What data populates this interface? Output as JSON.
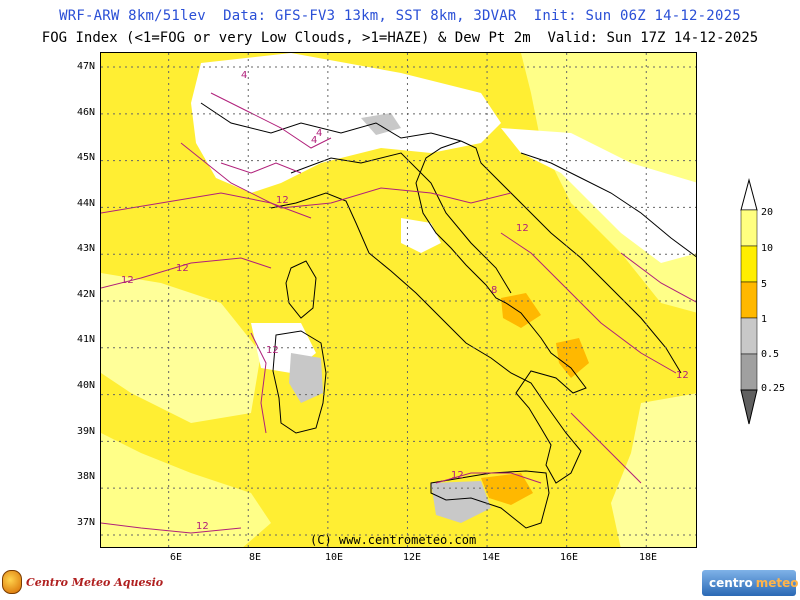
{
  "header": {
    "line1": "WRF-ARW 8km/51lev  Data: GFS-FV3 13km, SST 8km, 3DVAR  Init: Sun 06Z 14-12-2025",
    "line2": "FOG Index (<1=FOG or very Low Clouds, >1=HAZE) & Dew Pt 2m  Valid: Sun 17Z 14-12-2025"
  },
  "map": {
    "lat_labels": [
      "47N",
      "46N",
      "45N",
      "44N",
      "43N",
      "42N",
      "41N",
      "40N",
      "39N",
      "38N",
      "37N"
    ],
    "lon_labels": [
      "6E",
      "8E",
      "10E",
      "12E",
      "14E",
      "16E",
      "18E"
    ],
    "lat_range": [
      36.7,
      47.3
    ],
    "lon_range": [
      4.3,
      19.3
    ],
    "copyright": "(C) www.centrometeo.com",
    "contour_labels": [
      "4",
      "4",
      "12",
      "12",
      "12",
      "12",
      "12",
      "8",
      "4",
      "12",
      "12",
      "12"
    ]
  },
  "legend": {
    "levels": [
      "20",
      "10",
      "5",
      "1",
      "0.5",
      "0.25"
    ],
    "colors": {
      "ge10": "#ffff80",
      "5to10": "#ffee00",
      "1to5": "#ffb800",
      "0.5to1": "#c8c8c8",
      "0.25to0.5": "#a0a0a0",
      "lt0.25": "#707070"
    }
  },
  "logos": {
    "left": "Centro Meteo Aquesio",
    "right_a": "centro",
    "right_b": "meteo"
  }
}
